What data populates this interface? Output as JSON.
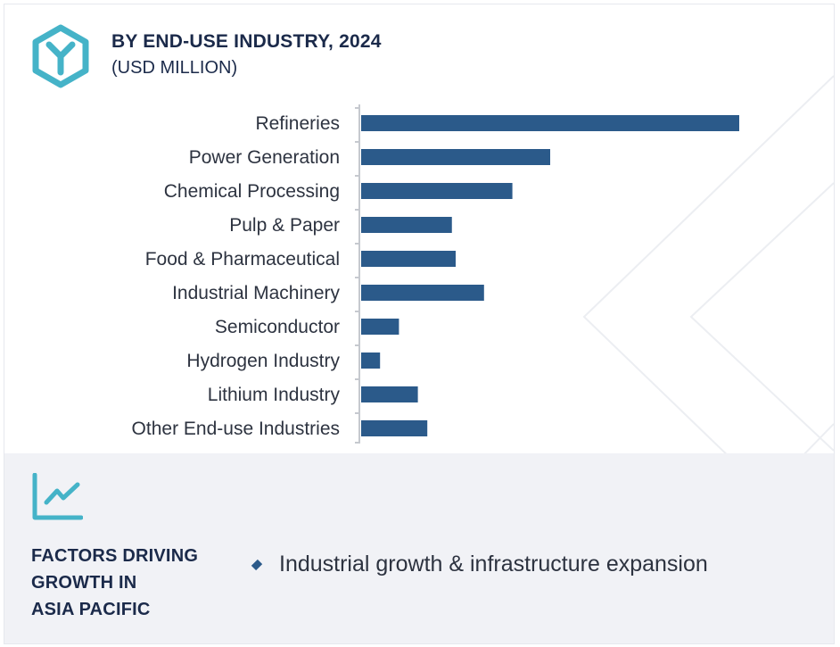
{
  "header": {
    "title": "BY END-USE INDUSTRY, 2024",
    "subtitle": "(USD MILLION)",
    "logo_icon": "hexagon-y-logo-icon"
  },
  "chart_data": {
    "type": "bar",
    "orientation": "horizontal",
    "title": "BY END-USE INDUSTRY, 2024",
    "subtitle": "(USD MILLION)",
    "categories": [
      "Refineries",
      "Power Generation",
      "Chemical Processing",
      "Pulp & Paper",
      "Food & Pharmaceutical",
      "Industrial Machinery",
      "Semiconductor",
      "Hydrogen Industry",
      "Lithium Industry",
      "Other End-use Industries"
    ],
    "values": [
      100,
      50,
      40,
      24,
      25,
      32.5,
      10,
      5,
      15,
      17.5
    ],
    "value_axis_shown": false,
    "xlim": [
      0,
      100
    ],
    "grid": false,
    "bar_color": "#2b5a8a",
    "axis_color": "#c6c9cf"
  },
  "factors": {
    "icon": "line-chart-trend-icon",
    "title_lines": [
      "FACTORS DRIVING",
      "GROWTH IN",
      "ASIA PACIFIC"
    ],
    "items": [
      "Industrial growth & infrastructure expansion"
    ]
  },
  "colors": {
    "accent_teal": "#45b3c8",
    "navy_text": "#1b2a4a",
    "bar": "#2b5a8a",
    "panel_bg": "#f1f2f6"
  }
}
